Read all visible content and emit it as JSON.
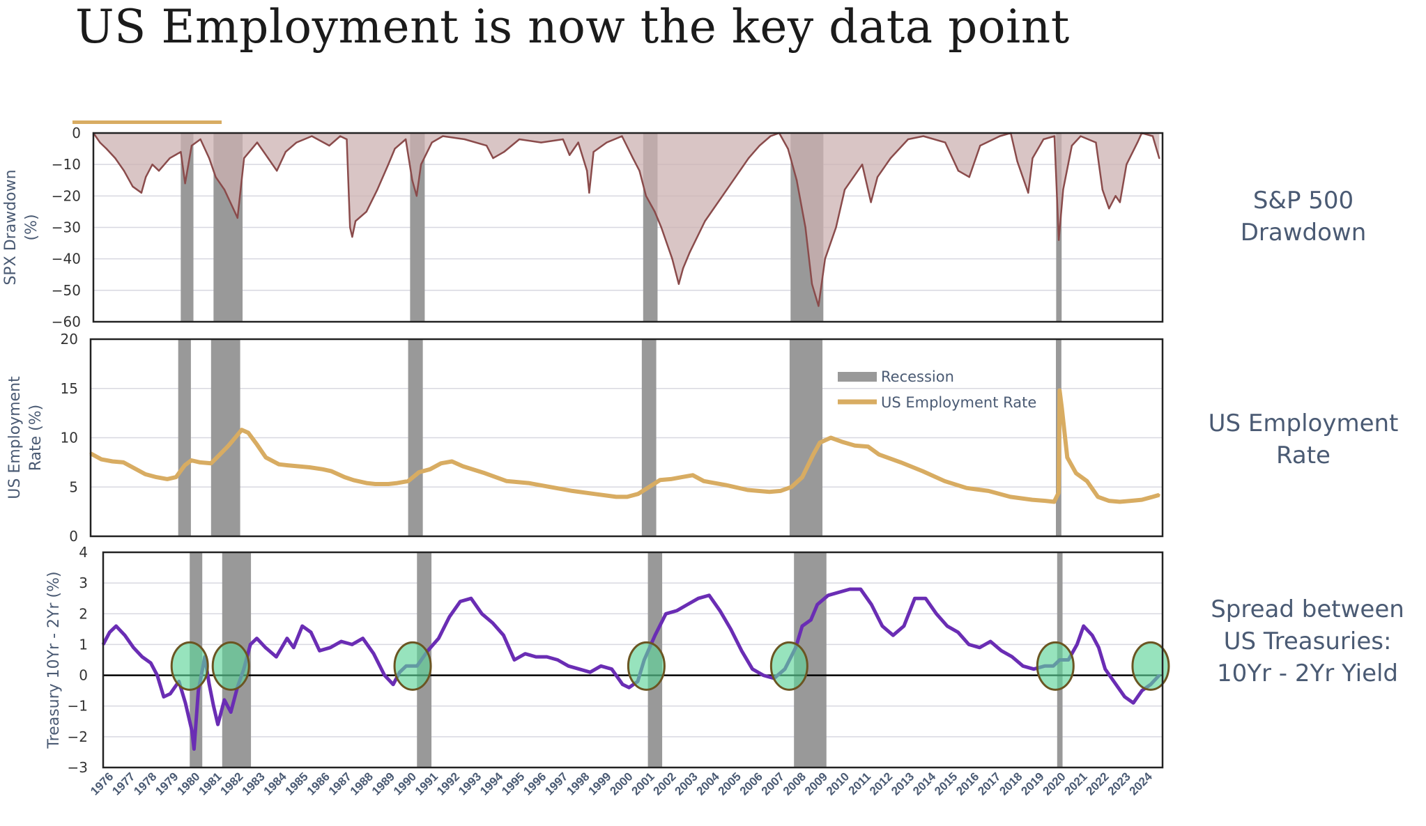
{
  "title": "US Employment is now the key data point",
  "colors": {
    "accent": "#d8ac62",
    "drawdown_line": "#8a4b4b",
    "drawdown_fill": "#ccb2b2",
    "recession": "#999999",
    "employment": "#d8ac62",
    "spread": "#6a2db4",
    "highlight_fill": "#5fd49a",
    "highlight_stroke": "#6b5522",
    "label_text": "#4a5a73",
    "grid": "#d8d8e0"
  },
  "side_labels": {
    "drawdown": [
      "S&P 500",
      "Drawdown"
    ],
    "employment": [
      "US Employment",
      "Rate"
    ],
    "spread": [
      "Spread between",
      "US Treasuries:",
      "10Yr - 2Yr Yield"
    ]
  },
  "chart_data": [
    {
      "type": "area",
      "ylabel": "SPX Drawdown (%)",
      "ylim": [
        -60,
        0
      ],
      "yticks": [
        0,
        -10,
        -20,
        -30,
        -40,
        -50,
        -60
      ],
      "grid": true,
      "recessions": [
        [
          1980.0,
          1980.58
        ],
        [
          1981.5,
          1982.83
        ],
        [
          1990.5,
          1991.17
        ],
        [
          2001.17,
          2001.83
        ],
        [
          2007.92,
          2009.42
        ],
        [
          2020.08,
          2020.33
        ]
      ],
      "series": [
        {
          "x": [
            1976.0,
            1976.3,
            1976.6,
            1977.0,
            1977.4,
            1977.8,
            1978.2,
            1978.4,
            1978.7,
            1979.0,
            1979.5,
            1980.0,
            1980.2,
            1980.5,
            1980.9,
            1981.3,
            1981.6,
            1982.0,
            1982.4,
            1982.6,
            1982.9,
            1983.5,
            1984.0,
            1984.4,
            1984.8,
            1985.3,
            1986.0,
            1986.8,
            1987.3,
            1987.6,
            1987.75,
            1987.85,
            1988.0,
            1988.5,
            1989.0,
            1989.5,
            1989.8,
            1990.3,
            1990.6,
            1990.8,
            1991.0,
            1991.5,
            1992.0,
            1993.0,
            1994.0,
            1994.3,
            1994.8,
            1995.5,
            1996.5,
            1997.5,
            1997.8,
            1998.2,
            1998.6,
            1998.7,
            1998.9,
            1999.5,
            2000.2,
            2000.7,
            2001.0,
            2001.3,
            2001.7,
            2002.0,
            2002.5,
            2002.8,
            2003.0,
            2003.3,
            2004.0,
            2005.0,
            2006.0,
            2006.5,
            2007.0,
            2007.4,
            2007.8,
            2008.2,
            2008.6,
            2008.9,
            2009.2,
            2009.5,
            2010.0,
            2010.4,
            2010.8,
            2011.2,
            2011.6,
            2011.9,
            2012.5,
            2013.3,
            2014.0,
            2015.0,
            2015.6,
            2016.1,
            2016.6,
            2017.5,
            2018.0,
            2018.3,
            2018.8,
            2019.0,
            2019.5,
            2020.0,
            2020.2,
            2020.4,
            2020.8,
            2021.2,
            2021.9,
            2022.2,
            2022.5,
            2022.8,
            2023.0,
            2023.3,
            2023.8,
            2024.0,
            2024.5,
            2024.8
          ],
          "values": [
            0,
            -3,
            -5,
            -8,
            -12,
            -17,
            -19,
            -14,
            -10,
            -12,
            -8,
            -6,
            -16,
            -4,
            -2,
            -8,
            -14,
            -18,
            -24,
            -27,
            -8,
            -3,
            -8,
            -12,
            -6,
            -3,
            -1,
            -4,
            -1,
            -2,
            -30,
            -33,
            -28,
            -25,
            -18,
            -10,
            -5,
            -2,
            -15,
            -20,
            -10,
            -3,
            -1,
            -2,
            -4,
            -8,
            -6,
            -2,
            -3,
            -2,
            -7,
            -3,
            -12,
            -19,
            -6,
            -3,
            -1,
            -8,
            -12,
            -20,
            -25,
            -30,
            -40,
            -48,
            -43,
            -38,
            -28,
            -18,
            -8,
            -4,
            -1,
            0,
            -5,
            -15,
            -30,
            -48,
            -55,
            -40,
            -30,
            -18,
            -14,
            -10,
            -22,
            -14,
            -8,
            -2,
            -1,
            -3,
            -12,
            -14,
            -4,
            -1,
            0,
            -9,
            -19,
            -8,
            -2,
            -1,
            -34,
            -18,
            -4,
            -1,
            -3,
            -18,
            -24,
            -20,
            -22,
            -10,
            -3,
            0,
            -1,
            -8
          ]
        }
      ]
    },
    {
      "type": "line",
      "ylabel": "US Employment Rate (%)",
      "ylim": [
        0,
        20
      ],
      "yticks": [
        0,
        5,
        10,
        15,
        20
      ],
      "legend": "top-center",
      "grid": true,
      "recessions": [
        [
          1980.0,
          1980.58
        ],
        [
          1981.5,
          1982.83
        ],
        [
          1990.5,
          1991.17
        ],
        [
          2001.17,
          2001.83
        ],
        [
          2007.92,
          2009.42
        ],
        [
          2020.08,
          2020.33
        ]
      ],
      "legend_entries": [
        "Recession",
        "US Employment Rate"
      ],
      "series": [
        {
          "name": "US Employment Rate",
          "x": [
            1976.0,
            1976.5,
            1977.0,
            1977.5,
            1978.0,
            1978.5,
            1979.0,
            1979.5,
            1979.9,
            1980.3,
            1980.6,
            1981.0,
            1981.5,
            1981.9,
            1982.3,
            1982.6,
            1982.9,
            1983.2,
            1983.6,
            1984.0,
            1984.6,
            1985.0,
            1986.0,
            1986.6,
            1987.0,
            1987.6,
            1988.0,
            1988.6,
            1989.0,
            1989.6,
            1990.0,
            1990.5,
            1991.0,
            1991.5,
            1992.0,
            1992.5,
            1993.0,
            1994.0,
            1995.0,
            1996.0,
            1997.0,
            1998.0,
            1999.0,
            2000.0,
            2000.5,
            2001.0,
            2001.5,
            2002.0,
            2002.5,
            2003.0,
            2003.5,
            2004.0,
            2005.0,
            2006.0,
            2007.0,
            2007.5,
            2008.0,
            2008.5,
            2009.0,
            2009.3,
            2009.8,
            2010.3,
            2010.9,
            2011.5,
            2012.0,
            2013.0,
            2014.0,
            2015.0,
            2016.0,
            2017.0,
            2018.0,
            2019.0,
            2019.6,
            2020.0,
            2020.2,
            2020.25,
            2020.35,
            2020.6,
            2021.0,
            2021.5,
            2022.0,
            2022.5,
            2023.0,
            2023.5,
            2024.0,
            2024.5,
            2024.8
          ],
          "values": [
            8.4,
            7.8,
            7.6,
            7.5,
            6.9,
            6.3,
            6.0,
            5.8,
            6.0,
            7.2,
            7.7,
            7.5,
            7.4,
            8.3,
            9.2,
            10.0,
            10.8,
            10.5,
            9.3,
            8.0,
            7.3,
            7.2,
            7.0,
            6.8,
            6.6,
            6.0,
            5.7,
            5.4,
            5.3,
            5.3,
            5.4,
            5.6,
            6.5,
            6.8,
            7.4,
            7.6,
            7.1,
            6.4,
            5.6,
            5.4,
            5.0,
            4.6,
            4.3,
            4.0,
            4.0,
            4.3,
            5.0,
            5.7,
            5.8,
            6.0,
            6.2,
            5.6,
            5.2,
            4.7,
            4.5,
            4.6,
            5.0,
            6.0,
            8.3,
            9.5,
            10.0,
            9.6,
            9.2,
            9.1,
            8.3,
            7.5,
            6.6,
            5.6,
            4.9,
            4.6,
            4.0,
            3.7,
            3.6,
            3.5,
            4.4,
            14.8,
            13.0,
            8.0,
            6.4,
            5.6,
            4.0,
            3.6,
            3.5,
            3.6,
            3.7,
            4.0,
            4.2
          ]
        }
      ]
    },
    {
      "type": "line",
      "ylabel": "Treasury 10Yr - 2Yr (%)",
      "ylim": [
        -3,
        4
      ],
      "yticks": [
        4,
        3,
        2,
        1,
        0,
        -1,
        -2,
        -3
      ],
      "grid": true,
      "recessions": [
        [
          1980.0,
          1980.58
        ],
        [
          1981.5,
          1982.83
        ],
        [
          1990.5,
          1991.17
        ],
        [
          2001.17,
          2001.83
        ],
        [
          2007.92,
          2009.42
        ],
        [
          2020.08,
          2020.33
        ]
      ],
      "highlights": [
        [
          1980.0,
          0.3
        ],
        [
          1981.9,
          0.3
        ],
        [
          1990.3,
          0.3
        ],
        [
          2001.1,
          0.3
        ],
        [
          2007.7,
          0.3
        ],
        [
          2020.0,
          0.3
        ],
        [
          2024.4,
          0.3
        ]
      ],
      "series": [
        {
          "x": [
            1976.0,
            1976.3,
            1976.6,
            1977.0,
            1977.4,
            1977.8,
            1978.2,
            1978.5,
            1978.8,
            1979.1,
            1979.5,
            1979.8,
            1980.1,
            1980.2,
            1980.4,
            1980.7,
            1980.9,
            1981.1,
            1981.3,
            1981.6,
            1981.9,
            1982.2,
            1982.5,
            1982.8,
            1983.1,
            1983.5,
            1984.0,
            1984.5,
            1984.8,
            1985.2,
            1985.6,
            1986.0,
            1986.5,
            1987.0,
            1987.5,
            1988.0,
            1988.5,
            1989.0,
            1989.4,
            1989.7,
            1990.0,
            1990.5,
            1991.0,
            1991.5,
            1992.0,
            1992.5,
            1993.0,
            1993.5,
            1994.0,
            1994.5,
            1995.0,
            1995.5,
            1996.0,
            1996.5,
            1997.0,
            1997.5,
            1998.0,
            1998.5,
            1999.0,
            1999.5,
            2000.0,
            2000.3,
            2000.7,
            2001.0,
            2001.5,
            2002.0,
            2002.5,
            2003.0,
            2003.5,
            2004.0,
            2004.5,
            2005.0,
            2005.5,
            2006.0,
            2006.5,
            2007.0,
            2007.5,
            2008.0,
            2008.3,
            2008.7,
            2009.0,
            2009.5,
            2010.0,
            2010.5,
            2011.0,
            2011.5,
            2012.0,
            2012.5,
            2013.0,
            2013.5,
            2014.0,
            2014.5,
            2015.0,
            2015.5,
            2016.0,
            2016.5,
            2017.0,
            2017.5,
            2018.0,
            2018.5,
            2019.0,
            2019.5,
            2019.9,
            2020.2,
            2020.6,
            2021.0,
            2021.3,
            2021.7,
            2022.0,
            2022.3,
            2022.6,
            2022.9,
            2023.2,
            2023.6,
            2024.0,
            2024.4,
            2024.8
          ],
          "values": [
            1.0,
            1.4,
            1.6,
            1.3,
            0.9,
            0.6,
            0.4,
            0.0,
            -0.7,
            -0.6,
            -0.2,
            -0.9,
            -1.8,
            -2.4,
            -0.5,
            0.6,
            -0.3,
            -1.0,
            -1.6,
            -0.8,
            -1.2,
            -0.4,
            0.2,
            1.0,
            1.2,
            0.9,
            0.6,
            1.2,
            0.9,
            1.6,
            1.4,
            0.8,
            0.9,
            1.1,
            1.0,
            1.2,
            0.7,
            0.0,
            -0.3,
            0.1,
            0.3,
            0.3,
            0.8,
            1.2,
            1.9,
            2.4,
            2.5,
            2.0,
            1.7,
            1.3,
            0.5,
            0.7,
            0.6,
            0.6,
            0.5,
            0.3,
            0.2,
            0.1,
            0.3,
            0.2,
            -0.3,
            -0.4,
            -0.2,
            0.5,
            1.3,
            2.0,
            2.1,
            2.3,
            2.5,
            2.6,
            2.1,
            1.5,
            0.8,
            0.2,
            0.0,
            -0.1,
            0.2,
            0.9,
            1.6,
            1.8,
            2.3,
            2.6,
            2.7,
            2.8,
            2.8,
            2.3,
            1.6,
            1.3,
            1.6,
            2.5,
            2.5,
            2.0,
            1.6,
            1.4,
            1.0,
            0.9,
            1.1,
            0.8,
            0.6,
            0.3,
            0.2,
            0.3,
            0.3,
            0.5,
            0.5,
            1.0,
            1.6,
            1.3,
            0.9,
            0.2,
            -0.1,
            -0.4,
            -0.7,
            -0.9,
            -0.5,
            -0.3,
            0.0
          ]
        }
      ]
    }
  ],
  "x_axis": {
    "ticks": [
      "1976",
      "1977",
      "1978",
      "1979",
      "1980",
      "1981",
      "1982",
      "1983",
      "1984",
      "1985",
      "1986",
      "1987",
      "1988",
      "1989",
      "1990",
      "1991",
      "1992",
      "1993",
      "1994",
      "1995",
      "1996",
      "1997",
      "1998",
      "1999",
      "2000",
      "2001",
      "2002",
      "2003",
      "2004",
      "2005",
      "2006",
      "2007",
      "2008",
      "2009",
      "2010",
      "2011",
      "2012",
      "2013",
      "2014",
      "2015",
      "2016",
      "2017",
      "2018",
      "2019",
      "2020",
      "2021",
      "2022",
      "2023",
      "2024"
    ]
  }
}
